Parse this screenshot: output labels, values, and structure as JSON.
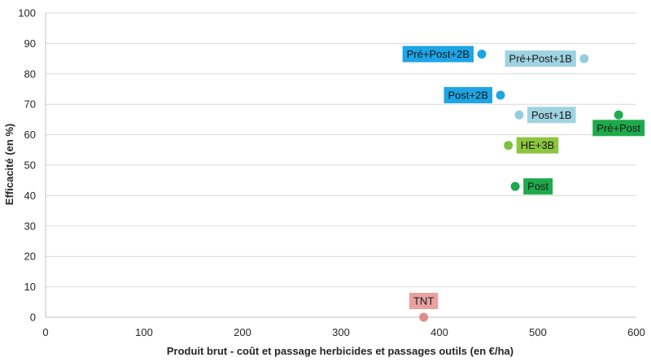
{
  "chart_data": {
    "type": "scatter",
    "xlabel": "Produit brut - coût et passage herbicides et passages outils (en €/ha)",
    "ylabel": "Efficacité (en %)",
    "xlim": [
      0,
      600
    ],
    "ylim": [
      0,
      100
    ],
    "xticks": [
      0,
      100,
      200,
      300,
      400,
      500,
      600
    ],
    "yticks": [
      0,
      10,
      20,
      30,
      40,
      50,
      60,
      70,
      80,
      90,
      100
    ],
    "grid": "horizontal",
    "points": [
      {
        "label": "TNT",
        "x": 384,
        "y": 0,
        "color": "#e08c8c",
        "label_bg": "#e8a0a0",
        "label_pos": "above"
      },
      {
        "label": "Post",
        "x": 477,
        "y": 43,
        "color": "#1eaa4b",
        "label_bg": "#1eaa4b",
        "label_pos": "right"
      },
      {
        "label": "HE+3B",
        "x": 470,
        "y": 56.5,
        "color": "#7dc242",
        "label_bg": "#8cc63f",
        "label_pos": "right"
      },
      {
        "label": "Post+1B",
        "x": 481,
        "y": 66.5,
        "color": "#93cddd",
        "label_bg": "#9fd3e2",
        "label_pos": "right"
      },
      {
        "label": "Pré+Post",
        "x": 582,
        "y": 66.5,
        "color": "#1eaa4b",
        "label_bg": "#1eaa4b",
        "label_pos": "below"
      },
      {
        "label": "Post+2B",
        "x": 462,
        "y": 73,
        "color": "#1ea5e5",
        "label_bg": "#1ea5e5",
        "label_pos": "left"
      },
      {
        "label": "Pré+Post+2B",
        "x": 443,
        "y": 86.5,
        "color": "#1ea5e5",
        "label_bg": "#1ea5e5",
        "label_pos": "left"
      },
      {
        "label": "Pré+Post+1B",
        "x": 547,
        "y": 85,
        "color": "#93cddd",
        "label_bg": "#9fd3e2",
        "label_pos": "left"
      }
    ]
  }
}
